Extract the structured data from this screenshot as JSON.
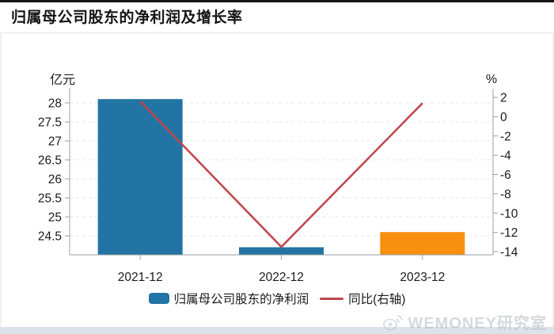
{
  "header": {
    "title": "归属母公司股东的净利润及增长率"
  },
  "chart_data": {
    "type": "bar",
    "title": "归属母公司股东的净利润及增长率",
    "categories": [
      "2021-12",
      "2022-12",
      "2023-12"
    ],
    "series": [
      {
        "name": "归属母公司股东的净利润",
        "type": "bar",
        "axis": "left",
        "values": [
          28.1,
          24.2,
          24.6
        ],
        "colors": [
          "#2174a3",
          "#2174a3",
          "#f7900f"
        ]
      },
      {
        "name": "同比(右轴)",
        "type": "line",
        "axis": "right",
        "values": [
          1.6,
          -13.5,
          1.4
        ],
        "color": "#c0444c"
      }
    ],
    "left_axis": {
      "unit": "亿元",
      "min": 24,
      "max": 28.35,
      "ticks": [
        24.5,
        25,
        25.5,
        26,
        26.5,
        27,
        27.5,
        28
      ]
    },
    "right_axis": {
      "unit": "%",
      "min": -14.3,
      "max": 2.9,
      "ticks": [
        2,
        0,
        -2,
        -4,
        -6,
        -8,
        -10,
        -12,
        -14
      ]
    },
    "grid": true,
    "legend_position": "bottom"
  },
  "watermark": {
    "text": "WEMONEY研究室",
    "icon": "weibo-icon"
  },
  "colors": {
    "bar_blue": "#2174a3",
    "bar_orange": "#f7900f",
    "line_red": "#c0444c",
    "axis_line": "#9aa0a6",
    "gridline": "#e7e7e7",
    "top_bar": "#141414",
    "bottom_strip": "#dce3eb"
  }
}
